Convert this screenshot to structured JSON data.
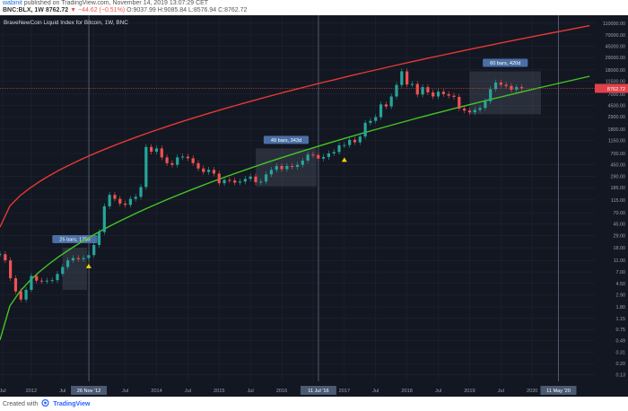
{
  "header": {
    "author": "wabinit",
    "published": "published on TradingView.com, November 14, 2019 13:07:29 CET",
    "symbol": "BNC:BLX, 1W",
    "price": "8762.72",
    "change": "▼ −44.62 (−0.51%)",
    "ohlc": "O:9037.99 H:9085.84 L:8576.94 C:8762.72"
  },
  "footer": {
    "created_with": "Created with",
    "brand": "TradingView"
  },
  "chart_data": {
    "type": "line",
    "title": "BraveNewCoin Liquid Index for Bitcoin, 1W, BNC",
    "y_scale": "log",
    "y_ticks": [
      "110000.00",
      "70000.00",
      "45000.00",
      "29000.00",
      "18000.00",
      "11500.00",
      "7000.00",
      "4500.00",
      "2900.00",
      "1800.00",
      "1150.00",
      "700.00",
      "450.00",
      "290.00",
      "185.00",
      "115.00",
      "70.00",
      "45.00",
      "29.00",
      "18.00",
      "11.00",
      "7.00",
      "4.50",
      "2.90",
      "1.80",
      "1.15",
      "0.75",
      "0.49",
      "0.31",
      "0.20",
      "0.13"
    ],
    "x_ticks": [
      "Jul",
      "2012",
      "Jul",
      "2013",
      "Jul",
      "2014",
      "Jul",
      "2015",
      "Jul",
      "2016",
      "Jul",
      "2017",
      "Jul",
      "2018",
      "Jul",
      "2019",
      "Jul",
      "2020"
    ],
    "x_range": [
      "2011-07",
      "2020-12"
    ],
    "y_range": [
      0.1,
      150000
    ],
    "grid": true,
    "background": "#131722",
    "last_price_label": "8762.72",
    "last_price_color": "#e0424a",
    "series": [
      {
        "kind": "candlestick",
        "up_color": "#26a69a",
        "down_color": "#ef5350",
        "points": [
          [
            "2011-07",
            14
          ],
          [
            "2011-08",
            11
          ],
          [
            "2011-09",
            5.5
          ],
          [
            "2011-10",
            3.3
          ],
          [
            "2011-11",
            2.4
          ],
          [
            "2011-12",
            3.5
          ],
          [
            "2012-01",
            6
          ],
          [
            "2012-02",
            5
          ],
          [
            "2012-03",
            4.9
          ],
          [
            "2012-04",
            5
          ],
          [
            "2012-05",
            5.1
          ],
          [
            "2012-06",
            6.5
          ],
          [
            "2012-07",
            8.5
          ],
          [
            "2012-08",
            11
          ],
          [
            "2012-09",
            12
          ],
          [
            "2012-10",
            11.5
          ],
          [
            "2012-11",
            12
          ],
          [
            "2012-12",
            13.5
          ],
          [
            "2013-01",
            20
          ],
          [
            "2013-02",
            33
          ],
          [
            "2013-03",
            90
          ],
          [
            "2013-04",
            140
          ],
          [
            "2013-05",
            120
          ],
          [
            "2013-06",
            100
          ],
          [
            "2013-07",
            95
          ],
          [
            "2013-08",
            120
          ],
          [
            "2013-09",
            130
          ],
          [
            "2013-10",
            190
          ],
          [
            "2013-11",
            900
          ],
          [
            "2013-12",
            750
          ],
          [
            "2014-01",
            850
          ],
          [
            "2014-02",
            600
          ],
          [
            "2014-03",
            480
          ],
          [
            "2014-04",
            450
          ],
          [
            "2014-05",
            600
          ],
          [
            "2014-06",
            620
          ],
          [
            "2014-07",
            580
          ],
          [
            "2014-08",
            480
          ],
          [
            "2014-09",
            390
          ],
          [
            "2014-10",
            340
          ],
          [
            "2014-11",
            370
          ],
          [
            "2014-12",
            320
          ],
          [
            "2015-01",
            220
          ],
          [
            "2015-02",
            250
          ],
          [
            "2015-03",
            245
          ],
          [
            "2015-04",
            225
          ],
          [
            "2015-05",
            235
          ],
          [
            "2015-06",
            260
          ],
          [
            "2015-07",
            285
          ],
          [
            "2015-08",
            230
          ],
          [
            "2015-09",
            235
          ],
          [
            "2015-10",
            310
          ],
          [
            "2015-11",
            370
          ],
          [
            "2015-12",
            430
          ],
          [
            "2016-01",
            380
          ],
          [
            "2016-02",
            430
          ],
          [
            "2016-03",
            415
          ],
          [
            "2016-04",
            450
          ],
          [
            "2016-05",
            530
          ],
          [
            "2016-06",
            670
          ],
          [
            "2016-07",
            660
          ],
          [
            "2016-08",
            575
          ],
          [
            "2016-09",
            610
          ],
          [
            "2016-10",
            700
          ],
          [
            "2016-11",
            740
          ],
          [
            "2016-12",
            960
          ],
          [
            "2017-01",
            970
          ],
          [
            "2017-02",
            1190
          ],
          [
            "2017-03",
            1080
          ],
          [
            "2017-04",
            1350
          ],
          [
            "2017-05",
            2300
          ],
          [
            "2017-06",
            2480
          ],
          [
            "2017-07",
            2870
          ],
          [
            "2017-08",
            4700
          ],
          [
            "2017-09",
            4340
          ],
          [
            "2017-10",
            6400
          ],
          [
            "2017-11",
            10000
          ],
          [
            "2017-12",
            17000
          ],
          [
            "2018-01",
            10200
          ],
          [
            "2018-02",
            10400
          ],
          [
            "2018-03",
            6900
          ],
          [
            "2018-04",
            9200
          ],
          [
            "2018-05",
            7500
          ],
          [
            "2018-06",
            6400
          ],
          [
            "2018-07",
            7700
          ],
          [
            "2018-08",
            7000
          ],
          [
            "2018-09",
            6600
          ],
          [
            "2018-10",
            6300
          ],
          [
            "2018-11",
            4000
          ],
          [
            "2018-12",
            3700
          ],
          [
            "2019-01",
            3450
          ],
          [
            "2019-02",
            3800
          ],
          [
            "2019-03",
            4100
          ],
          [
            "2019-04",
            5300
          ],
          [
            "2019-05",
            8500
          ],
          [
            "2019-06",
            11000
          ],
          [
            "2019-07",
            10100
          ],
          [
            "2019-08",
            9600
          ],
          [
            "2019-09",
            8300
          ],
          [
            "2019-10",
            9200
          ],
          [
            "2019-11",
            8762.72
          ]
        ]
      },
      {
        "kind": "line",
        "name": "",
        "color": "#e53935",
        "from": [
          "2011-07",
          40
        ],
        "to": [
          "2020-12",
          100000
        ]
      },
      {
        "kind": "line",
        "name": "",
        "color": "#43c724",
        "from": [
          "2011-07",
          0.5
        ],
        "to": [
          "2020-12",
          14000
        ]
      }
    ],
    "annotations": [
      {
        "label": "25 bars, 175d",
        "from": "2012-07",
        "to": "2012-11",
        "low": 3.5,
        "high": 18
      },
      {
        "label": "49 bars, 343d",
        "from": "2015-08",
        "to": "2016-07",
        "low": 195,
        "high": 850
      },
      {
        "label": "60 bars, 420d",
        "from": "2019-01",
        "to": "2020-02",
        "low": 3200,
        "high": 17000
      }
    ],
    "event_lines": [
      {
        "label": "26 Nov '12",
        "date": "2012-11"
      },
      {
        "label": "11 Jul '16",
        "date": "2016-07"
      },
      {
        "label": "11 May '20",
        "date": "2020-05"
      }
    ],
    "markers": [
      {
        "date": "2012-12",
        "value": 9,
        "color": "#f5d300"
      },
      {
        "date": "2017-01",
        "value": 560,
        "color": "#f5d300"
      }
    ]
  }
}
